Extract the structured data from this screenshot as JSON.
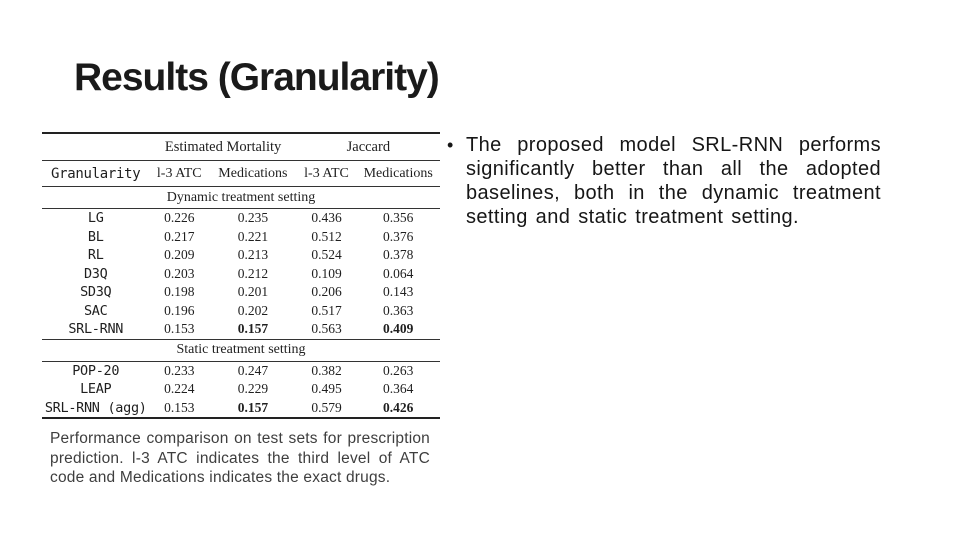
{
  "slide": {
    "title": "Results (Granularity)"
  },
  "bullet": {
    "marker": "•",
    "text": "The proposed model SRL-RNN performs significantly better than all the adopted baselines, both in the dynamic treatment setting and static treatment setting."
  },
  "caption": {
    "text": "Performance comparison on test sets for prescription prediction. l-3 ATC indicates the third level of ATC code and Medications indicates the exact drugs."
  },
  "colors": {
    "background": "#ffffff",
    "title_text": "#1a1a1a",
    "bullet_text": "#161616",
    "caption_text": "#3e3e3e",
    "table_text": "#1f1f1f",
    "table_rule": "#333333"
  },
  "chart_data": {
    "type": "table",
    "title": "Performance comparison on test sets for prescription prediction",
    "group_headers": [
      {
        "label": "",
        "colspan": 1
      },
      {
        "label": "Estimated Mortality",
        "colspan": 2
      },
      {
        "label": "Jaccard",
        "colspan": 2
      }
    ],
    "columns": [
      "Granularity",
      "l-3 ATC",
      "Medications",
      "l-3 ATC",
      "Medications"
    ],
    "sections": [
      {
        "label": "Dynamic treatment setting",
        "rows": [
          {
            "name": "LG",
            "values": [
              "0.226",
              "0.235",
              "0.436",
              "0.356"
            ],
            "bold": [
              false,
              false,
              false,
              false
            ]
          },
          {
            "name": "BL",
            "values": [
              "0.217",
              "0.221",
              "0.512",
              "0.376"
            ],
            "bold": [
              false,
              false,
              false,
              false
            ]
          },
          {
            "name": "RL",
            "values": [
              "0.209",
              "0.213",
              "0.524",
              "0.378"
            ],
            "bold": [
              false,
              false,
              false,
              false
            ]
          },
          {
            "name": "D3Q",
            "values": [
              "0.203",
              "0.212",
              "0.109",
              "0.064"
            ],
            "bold": [
              false,
              false,
              false,
              false
            ]
          },
          {
            "name": "SD3Q",
            "values": [
              "0.198",
              "0.201",
              "0.206",
              "0.143"
            ],
            "bold": [
              false,
              false,
              false,
              false
            ]
          },
          {
            "name": "SAC",
            "values": [
              "0.196",
              "0.202",
              "0.517",
              "0.363"
            ],
            "bold": [
              false,
              false,
              false,
              false
            ]
          },
          {
            "name": "SRL-RNN",
            "values": [
              "0.153",
              "0.157",
              "0.563",
              "0.409"
            ],
            "bold": [
              false,
              true,
              false,
              true
            ]
          }
        ]
      },
      {
        "label": "Static treatment setting",
        "rows": [
          {
            "name": "POP-20",
            "values": [
              "0.233",
              "0.247",
              "0.382",
              "0.263"
            ],
            "bold": [
              false,
              false,
              false,
              false
            ]
          },
          {
            "name": "LEAP",
            "values": [
              "0.224",
              "0.229",
              "0.495",
              "0.364"
            ],
            "bold": [
              false,
              false,
              false,
              false
            ]
          },
          {
            "name": "SRL-RNN (agg)",
            "values": [
              "0.153",
              "0.157",
              "0.579",
              "0.426"
            ],
            "bold": [
              false,
              true,
              false,
              true
            ]
          }
        ]
      }
    ]
  }
}
